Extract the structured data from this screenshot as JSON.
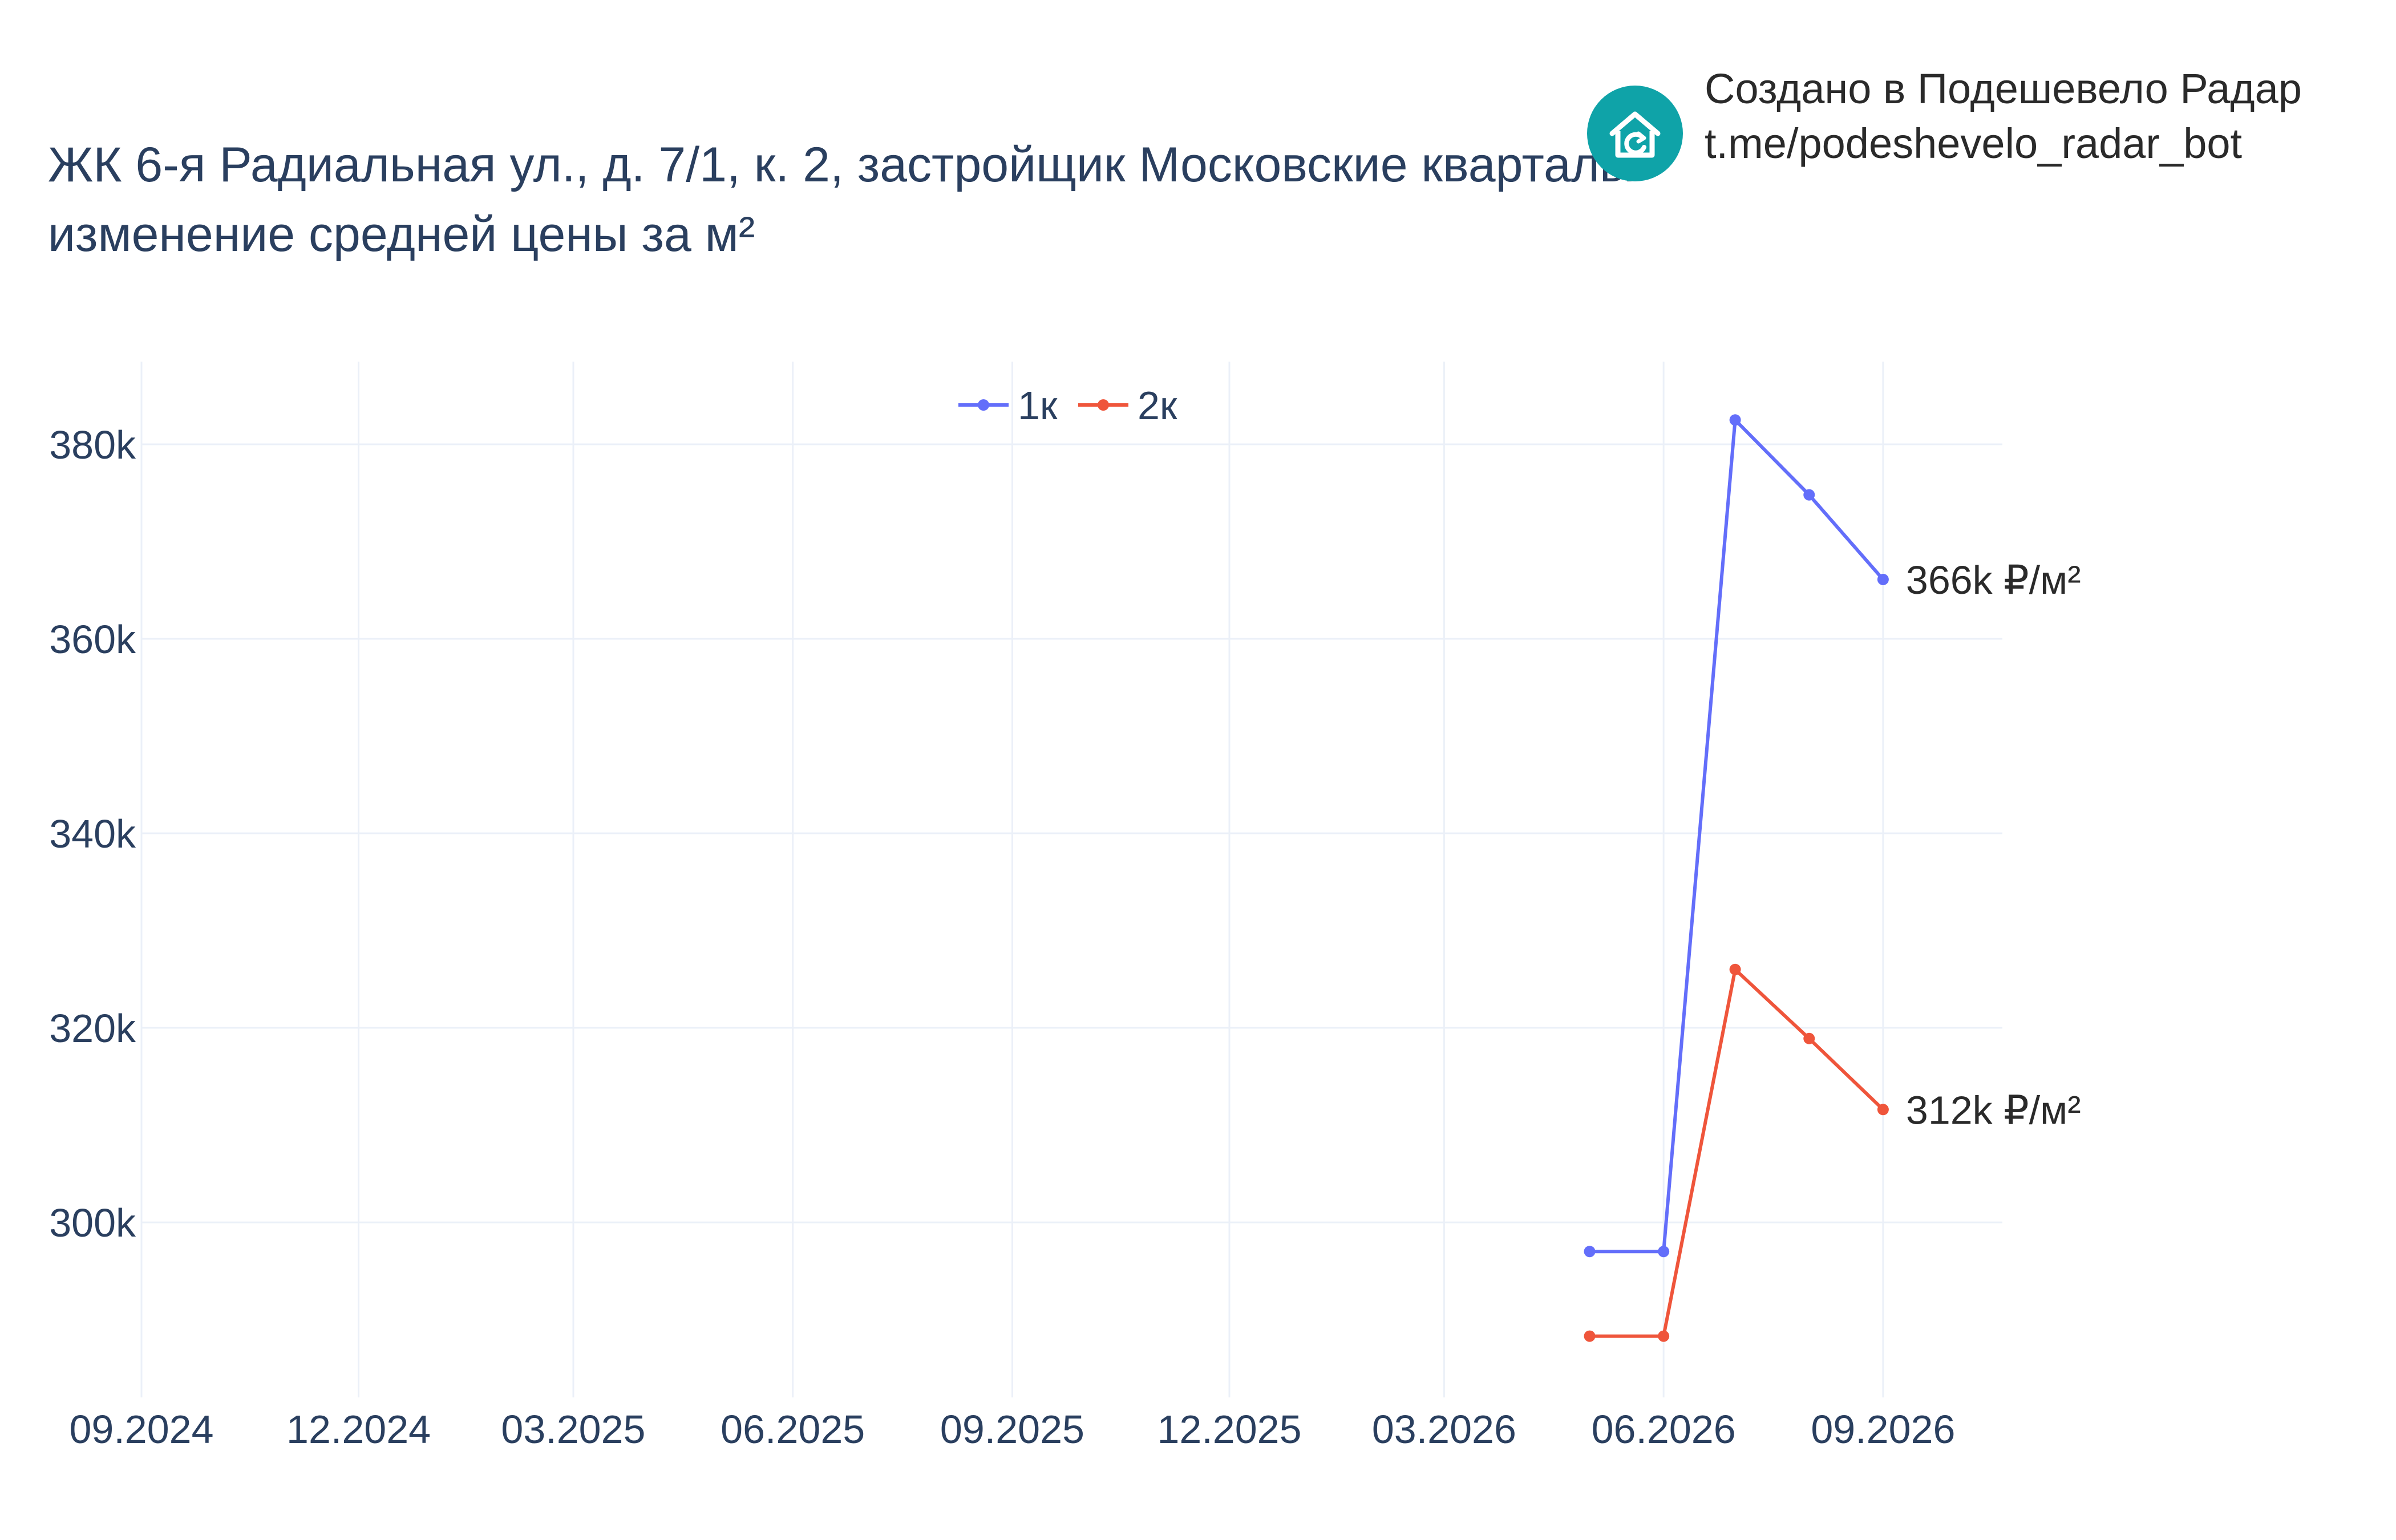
{
  "header": {
    "title_line1": "ЖК 6-я Радиальная ул., д. 7/1, к. 2, застройщик Московские кварталы",
    "title_line2": "изменение средней цены за м²"
  },
  "credit": {
    "line1": "Создано в Подешевело Радар",
    "line2": "t.me/podeshevelo_radar_bot",
    "logo_icon": "house-refresh-icon",
    "logo_color": "#0fa3a8"
  },
  "chart_data": {
    "type": "line",
    "title": "ЖК 6-я Радиальная ул., д. 7/1, к. 2, застройщик Московские кварталы изменение средней цены за м²",
    "xlabel": "",
    "ylabel": "",
    "x_ticks": [
      "09.2024",
      "12.2024",
      "03.2025",
      "06.2025",
      "09.2025",
      "12.2025",
      "03.2026",
      "06.2026",
      "09.2026"
    ],
    "y_ticks": [
      "300k",
      "320k",
      "340k",
      "360k",
      "380k"
    ],
    "xlim": [
      "2024-09-01",
      "2026-10-21"
    ],
    "ylim": [
      282000,
      388500
    ],
    "grid": true,
    "legend": {
      "position": "top-center",
      "orientation": "horizontal"
    },
    "series": [
      {
        "name": "1к",
        "color": "#636efa",
        "points": [
          {
            "x": "2026-05-01",
            "y": 297000
          },
          {
            "x": "2026-06-01",
            "y": 297000
          },
          {
            "x": "2026-07-01",
            "y": 382500
          },
          {
            "x": "2026-08-01",
            "y": 374800
          },
          {
            "x": "2026-09-01",
            "y": 366100
          }
        ],
        "end_label": "366k ₽/м²"
      },
      {
        "name": "2к",
        "color": "#ef553b",
        "points": [
          {
            "x": "2026-05-01",
            "y": 288300
          },
          {
            "x": "2026-06-01",
            "y": 288300
          },
          {
            "x": "2026-07-01",
            "y": 326000
          },
          {
            "x": "2026-08-01",
            "y": 318900
          },
          {
            "x": "2026-09-01",
            "y": 311600
          }
        ],
        "end_label": "312k ₽/м²"
      }
    ]
  }
}
